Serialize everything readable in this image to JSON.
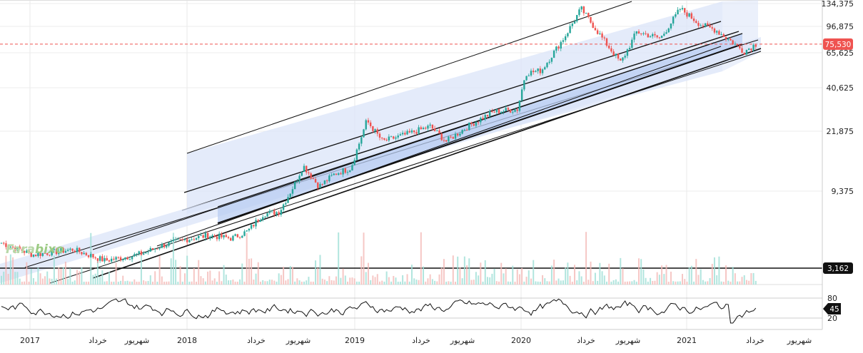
{
  "brand": {
    "logo_part1": "Fara",
    "logo_part2": "bixo",
    "color1": "#b8d8a8",
    "color2": "#9ccb84"
  },
  "colors": {
    "up": "#26a69a",
    "down": "#ef5350",
    "channel_fill": "#dbe4f8",
    "inner_fill": "#b9cdf2",
    "current_line": "#ef5350",
    "tag_red": "#ef5350",
    "tag_black": "#111111"
  },
  "chart_data": [
    {
      "type": "candlestick",
      "scale": "log",
      "y_ticks": [
        "134,375",
        "96,875",
        "65,625",
        "40,625",
        "21,875",
        "9,375"
      ],
      "x_labels": [
        "2017",
        "خرداد",
        "شهریور",
        "2018",
        "خرداد",
        "شهریور",
        "2019",
        "خرداد",
        "شهریور",
        "2020",
        "خرداد",
        "شهریور",
        "2021",
        "خرداد",
        "شهریور"
      ],
      "current_price": "75,530",
      "horizontal_level": "3,162",
      "anchor_points": [
        {
          "t": 0.0,
          "price": 4500
        },
        {
          "t": 0.04,
          "price": 3800
        },
        {
          "t": 0.09,
          "price": 4100
        },
        {
          "t": 0.13,
          "price": 3500
        },
        {
          "t": 0.16,
          "price": 3700
        },
        {
          "t": 0.18,
          "price": 3900
        },
        {
          "t": 0.2,
          "price": 4300
        },
        {
          "t": 0.23,
          "price": 4700
        },
        {
          "t": 0.26,
          "price": 5000
        },
        {
          "t": 0.29,
          "price": 4800
        },
        {
          "t": 0.31,
          "price": 5300
        },
        {
          "t": 0.33,
          "price": 6800
        },
        {
          "t": 0.35,
          "price": 7000
        },
        {
          "t": 0.37,
          "price": 10500
        },
        {
          "t": 0.38,
          "price": 13500
        },
        {
          "t": 0.4,
          "price": 10000
        },
        {
          "t": 0.42,
          "price": 12000
        },
        {
          "t": 0.44,
          "price": 13000
        },
        {
          "t": 0.46,
          "price": 25500
        },
        {
          "t": 0.48,
          "price": 19000
        },
        {
          "t": 0.51,
          "price": 21000
        },
        {
          "t": 0.54,
          "price": 23500
        },
        {
          "t": 0.56,
          "price": 19000
        },
        {
          "t": 0.59,
          "price": 24000
        },
        {
          "t": 0.62,
          "price": 29000
        },
        {
          "t": 0.65,
          "price": 30000
        },
        {
          "t": 0.66,
          "price": 50000
        },
        {
          "t": 0.68,
          "price": 52000
        },
        {
          "t": 0.71,
          "price": 85000
        },
        {
          "t": 0.73,
          "price": 125000
        },
        {
          "t": 0.76,
          "price": 78000
        },
        {
          "t": 0.78,
          "price": 58000
        },
        {
          "t": 0.8,
          "price": 90000
        },
        {
          "t": 0.83,
          "price": 82000
        },
        {
          "t": 0.855,
          "price": 125000
        },
        {
          "t": 0.88,
          "price": 100000
        },
        {
          "t": 0.9,
          "price": 92000
        },
        {
          "t": 0.92,
          "price": 78000
        },
        {
          "t": 0.935,
          "price": 68000
        },
        {
          "t": 0.95,
          "price": 75530
        }
      ],
      "oscillator": {
        "levels": [
          "80",
          "20"
        ],
        "value": "45"
      }
    }
  ]
}
